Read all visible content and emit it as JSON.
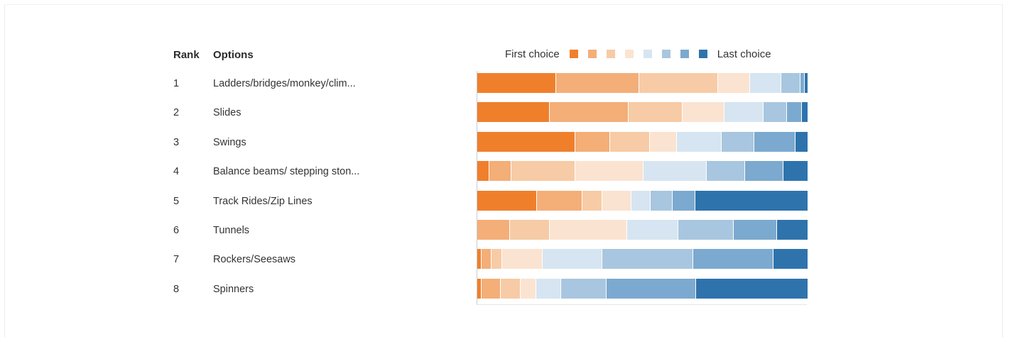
{
  "header": {
    "rank_label": "Rank",
    "options_label": "Options"
  },
  "legend": {
    "first_label": "First choice",
    "last_label": "Last choice",
    "colors": [
      "#f07f2c",
      "#f4ae78",
      "#f7cba5",
      "#fbe3d1",
      "#d6e5f1",
      "#a8c6df",
      "#7ca9cf",
      "#2f73ad"
    ]
  },
  "rows": [
    {
      "rank": "1",
      "option": "Ladders/bridges/monkey/clim..."
    },
    {
      "rank": "2",
      "option": "Slides"
    },
    {
      "rank": "3",
      "option": "Swings"
    },
    {
      "rank": "4",
      "option": "Balance beams/ stepping ston..."
    },
    {
      "rank": "5",
      "option": "Track Rides/Zip Lines"
    },
    {
      "rank": "6",
      "option": "Tunnels"
    },
    {
      "rank": "7",
      "option": "Rockers/Seesaws"
    },
    {
      "rank": "8",
      "option": "Spinners"
    }
  ],
  "chart_data": {
    "type": "bar",
    "orientation": "horizontal",
    "stacked": "100%",
    "categories": [
      "Ladders/bridges/monkey/clim...",
      "Slides",
      "Swings",
      "Balance beams/ stepping ston...",
      "Track Rides/Zip Lines",
      "Tunnels",
      "Rockers/Seesaws",
      "Spinners"
    ],
    "series": [
      {
        "values": [
          23.8,
          22.0,
          29.7,
          3.7,
          18.1,
          0.0,
          1.3,
          1.3
        ]
      },
      {
        "values": [
          25.2,
          23.8,
          10.6,
          6.7,
          13.8,
          9.9,
          2.8,
          5.8
        ]
      },
      {
        "values": [
          24.0,
          16.4,
          12.0,
          19.2,
          6.0,
          12.0,
          3.2,
          6.0
        ]
      },
      {
        "values": [
          9.5,
          12.7,
          8.2,
          20.6,
          8.8,
          23.4,
          11.8,
          4.7
        ]
      },
      {
        "values": [
          9.5,
          11.8,
          13.5,
          19.2,
          5.7,
          15.6,
          17.6,
          7.5
        ]
      },
      {
        "values": [
          5.8,
          7.1,
          9.9,
          11.6,
          6.8,
          16.8,
          26.8,
          13.9
        ]
      },
      {
        "values": [
          1.3,
          4.6,
          12.5,
          11.6,
          6.8,
          13.1,
          23.4,
          27.1
        ]
      },
      {
        "values": [
          0.9,
          1.6,
          3.6,
          7.3,
          34.0,
          9.2,
          10.1,
          33.7
        ]
      }
    ],
    "legend": {
      "position": "top",
      "labels": [
        "First choice",
        "Last choice"
      ]
    },
    "xlim": [
      0,
      100
    ],
    "grid": false
  }
}
